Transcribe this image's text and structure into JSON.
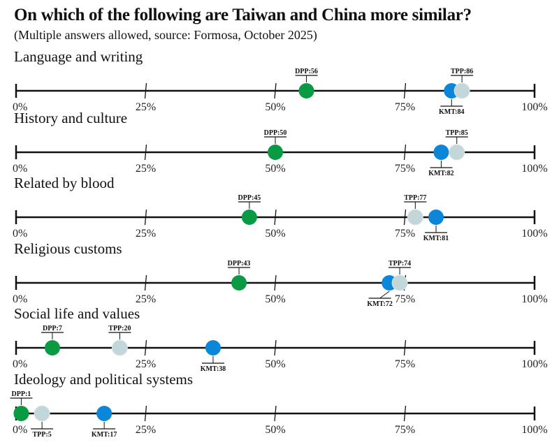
{
  "chart_data": {
    "type": "scatter",
    "title": "On which of the following are Taiwan and China more similar?",
    "subtitle": "(Multiple answers allowed, source: Formosa, October 2025)",
    "xlim": [
      0,
      100
    ],
    "tick_labels": [
      "0%",
      "25%",
      "50%",
      "75%",
      "100%"
    ],
    "ticks": [
      0,
      25,
      50,
      75,
      100
    ],
    "grid": false,
    "colors": {
      "DPP": "#0a9a44",
      "KMT": "#0b86d9",
      "TPP": "#c3d6da"
    },
    "categories": [
      {
        "name": "Language and writing",
        "values": {
          "DPP": 56,
          "KMT": 84,
          "TPP": 86
        }
      },
      {
        "name": "History and culture",
        "values": {
          "DPP": 50,
          "KMT": 82,
          "TPP": 85
        }
      },
      {
        "name": "Related by blood",
        "values": {
          "DPP": 45,
          "KMT": 81,
          "TPP": 77
        }
      },
      {
        "name": "Religious customs",
        "values": {
          "DPP": 43,
          "KMT": 72,
          "TPP": 74
        }
      },
      {
        "name": "Social life and values",
        "values": {
          "DPP": 7,
          "KMT": 38,
          "TPP": 20
        }
      },
      {
        "name": "Ideology and political systems",
        "values": {
          "DPP": 1,
          "KMT": 17,
          "TPP": 5
        }
      }
    ]
  }
}
